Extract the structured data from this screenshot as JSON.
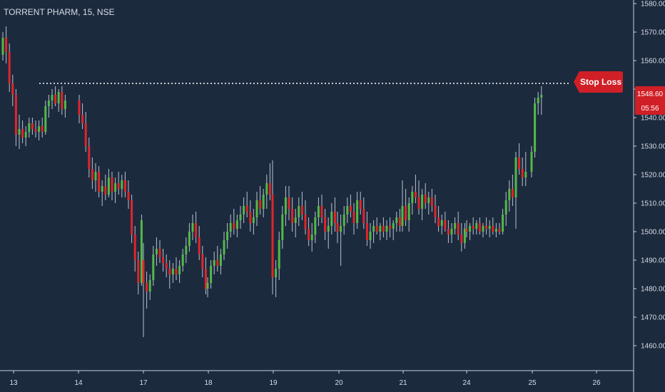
{
  "chart_title": "TORRENT PHARM, 15, NSE",
  "colors": {
    "background": "#1c2a3e",
    "up": "#53b947",
    "down": "#e0262b",
    "wick": "#b9c2cd",
    "axis_text": "#d7dde6",
    "price_tag": "#d01f26",
    "stop_loss_line": "#ffffff"
  },
  "price_tag": {
    "value": "1548.60",
    "countdown": "05:56"
  },
  "stop_loss": {
    "label": "Stop Loss",
    "value": 1552
  },
  "chart_data": {
    "type": "candlestick",
    "title": "TORRENT PHARM, 15, NSE",
    "x_tick_labels": [
      "13",
      "14",
      "17",
      "18",
      "19",
      "20",
      "21",
      "24",
      "25",
      "26"
    ],
    "y_tick_labels": [
      "1460.00",
      "1470.00",
      "1480.00",
      "1490.00",
      "1500.00",
      "1510.00",
      "1520.00",
      "1530.00",
      "1540.00",
      "1550.00",
      "1560.00",
      "1570.00",
      "1580.00"
    ],
    "ylim": [
      1452,
      1584
    ],
    "grid": false,
    "series": [
      {
        "day": "13",
        "ohlc": [
          [
            1562,
            1570,
            1560,
            1568
          ],
          [
            1568,
            1572,
            1559,
            1563
          ],
          [
            1563,
            1566,
            1549,
            1552
          ],
          [
            1552,
            1555,
            1544,
            1548
          ],
          [
            1548,
            1550,
            1530,
            1534
          ],
          [
            1534,
            1541,
            1529,
            1536
          ],
          [
            1536,
            1539,
            1531,
            1533
          ],
          [
            1533,
            1537,
            1530,
            1535
          ],
          [
            1535,
            1540,
            1533,
            1538
          ],
          [
            1538,
            1540,
            1534,
            1536
          ],
          [
            1536,
            1539,
            1533,
            1535
          ],
          [
            1535,
            1539,
            1532,
            1537
          ],
          [
            1537,
            1540,
            1533,
            1535
          ],
          [
            1535,
            1546,
            1534,
            1544
          ],
          [
            1544,
            1548,
            1540,
            1546
          ],
          [
            1546,
            1550,
            1543,
            1548
          ],
          [
            1548,
            1551,
            1544,
            1545
          ],
          [
            1545,
            1550,
            1542,
            1549
          ],
          [
            1549,
            1551,
            1541,
            1543
          ],
          [
            1543,
            1548,
            1540,
            1546
          ]
        ]
      },
      {
        "day": "14",
        "ohlc": [
          [
            1546,
            1548,
            1538,
            1541
          ],
          [
            1541,
            1545,
            1536,
            1538
          ],
          [
            1538,
            1542,
            1528,
            1530
          ],
          [
            1530,
            1533,
            1519,
            1522
          ],
          [
            1522,
            1526,
            1515,
            1518
          ],
          [
            1518,
            1524,
            1514,
            1521
          ],
          [
            1521,
            1523,
            1512,
            1514
          ],
          [
            1514,
            1518,
            1509,
            1516
          ],
          [
            1516,
            1520,
            1511,
            1513
          ],
          [
            1513,
            1522,
            1512,
            1519
          ],
          [
            1519,
            1521,
            1511,
            1514
          ],
          [
            1514,
            1519,
            1510,
            1517
          ],
          [
            1517,
            1521,
            1513,
            1515
          ],
          [
            1515,
            1520,
            1512,
            1518
          ],
          [
            1518,
            1521,
            1512,
            1514
          ],
          [
            1514,
            1518,
            1508,
            1511
          ],
          [
            1511,
            1513,
            1496,
            1499
          ],
          [
            1499,
            1502,
            1486,
            1490
          ],
          [
            1490,
            1493,
            1478,
            1482
          ],
          [
            1482,
            1506,
            1481,
            1504
          ]
        ]
      },
      {
        "day": "17",
        "ohlc": [
          [
            1490,
            1496,
            1463,
            1482
          ],
          [
            1482,
            1486,
            1473,
            1479
          ],
          [
            1479,
            1485,
            1476,
            1483
          ],
          [
            1483,
            1495,
            1481,
            1492
          ],
          [
            1492,
            1498,
            1488,
            1494
          ],
          [
            1494,
            1497,
            1489,
            1491
          ],
          [
            1491,
            1494,
            1486,
            1489
          ],
          [
            1489,
            1492,
            1484,
            1487
          ],
          [
            1487,
            1490,
            1480,
            1485
          ],
          [
            1485,
            1489,
            1482,
            1487
          ],
          [
            1487,
            1491,
            1483,
            1485
          ],
          [
            1485,
            1490,
            1482,
            1488
          ],
          [
            1488,
            1494,
            1486,
            1492
          ],
          [
            1492,
            1498,
            1489,
            1495
          ],
          [
            1495,
            1503,
            1493,
            1500
          ],
          [
            1500,
            1506,
            1497,
            1503
          ],
          [
            1503,
            1507,
            1496,
            1498
          ],
          [
            1498,
            1502,
            1490,
            1492
          ],
          [
            1492,
            1495,
            1484,
            1487
          ],
          [
            1487,
            1491,
            1478,
            1480
          ]
        ]
      },
      {
        "day": "18",
        "ohlc": [
          [
            1480,
            1484,
            1477,
            1482
          ],
          [
            1482,
            1490,
            1480,
            1488
          ],
          [
            1488,
            1493,
            1485,
            1490
          ],
          [
            1490,
            1495,
            1486,
            1488
          ],
          [
            1488,
            1494,
            1485,
            1492
          ],
          [
            1492,
            1500,
            1490,
            1497
          ],
          [
            1497,
            1503,
            1494,
            1500
          ],
          [
            1500,
            1506,
            1498,
            1503
          ],
          [
            1503,
            1508,
            1499,
            1501
          ],
          [
            1501,
            1506,
            1498,
            1504
          ],
          [
            1504,
            1509,
            1501,
            1506
          ],
          [
            1506,
            1512,
            1503,
            1509
          ],
          [
            1509,
            1514,
            1505,
            1507
          ],
          [
            1507,
            1511,
            1500,
            1503
          ],
          [
            1503,
            1508,
            1499,
            1505
          ],
          [
            1505,
            1514,
            1502,
            1511
          ],
          [
            1511,
            1516,
            1506,
            1508
          ],
          [
            1508,
            1515,
            1505,
            1513
          ],
          [
            1513,
            1520,
            1508,
            1517
          ],
          [
            1517,
            1524,
            1511,
            1513
          ]
        ]
      },
      {
        "day": "19",
        "ohlc": [
          [
            1513,
            1525,
            1478,
            1484
          ],
          [
            1484,
            1490,
            1477,
            1487
          ],
          [
            1487,
            1500,
            1483,
            1497
          ],
          [
            1497,
            1509,
            1494,
            1506
          ],
          [
            1506,
            1516,
            1502,
            1512
          ],
          [
            1512,
            1516,
            1504,
            1508
          ],
          [
            1508,
            1512,
            1500,
            1503
          ],
          [
            1503,
            1508,
            1498,
            1505
          ],
          [
            1505,
            1512,
            1502,
            1509
          ],
          [
            1509,
            1514,
            1504,
            1506
          ],
          [
            1506,
            1511,
            1499,
            1501
          ],
          [
            1501,
            1505,
            1495,
            1497
          ],
          [
            1497,
            1503,
            1493,
            1499
          ],
          [
            1499,
            1507,
            1496,
            1505
          ],
          [
            1505,
            1512,
            1502,
            1509
          ],
          [
            1509,
            1513,
            1503,
            1505
          ],
          [
            1505,
            1508,
            1497,
            1500
          ],
          [
            1500,
            1505,
            1494,
            1502
          ],
          [
            1502,
            1510,
            1499,
            1507
          ],
          [
            1507,
            1512,
            1500,
            1503
          ]
        ]
      },
      {
        "day": "20",
        "ohlc": [
          [
            1503,
            1507,
            1496,
            1500
          ],
          [
            1500,
            1506,
            1488,
            1502
          ],
          [
            1502,
            1509,
            1499,
            1506
          ],
          [
            1506,
            1512,
            1503,
            1509
          ],
          [
            1509,
            1513,
            1505,
            1507
          ],
          [
            1507,
            1510,
            1499,
            1503
          ],
          [
            1503,
            1514,
            1501,
            1511
          ],
          [
            1511,
            1514,
            1506,
            1508
          ],
          [
            1508,
            1512,
            1501,
            1503
          ],
          [
            1503,
            1507,
            1495,
            1497
          ],
          [
            1497,
            1503,
            1494,
            1500
          ],
          [
            1500,
            1504,
            1496,
            1502
          ],
          [
            1502,
            1505,
            1499,
            1500
          ],
          [
            1500,
            1503,
            1497,
            1502
          ],
          [
            1502,
            1505,
            1498,
            1500
          ],
          [
            1500,
            1504,
            1497,
            1502
          ],
          [
            1502,
            1505,
            1498,
            1501
          ],
          [
            1501,
            1504,
            1497,
            1503
          ],
          [
            1503,
            1507,
            1500,
            1505
          ],
          [
            1505,
            1508,
            1500,
            1502
          ]
        ]
      },
      {
        "day": "21",
        "ohlc": [
          [
            1502,
            1518,
            1500,
            1509
          ],
          [
            1509,
            1515,
            1502,
            1504
          ],
          [
            1504,
            1512,
            1500,
            1510
          ],
          [
            1510,
            1516,
            1506,
            1514
          ],
          [
            1514,
            1520,
            1510,
            1512
          ],
          [
            1512,
            1518,
            1506,
            1508
          ],
          [
            1508,
            1515,
            1504,
            1513
          ],
          [
            1513,
            1517,
            1508,
            1510
          ],
          [
            1510,
            1514,
            1506,
            1512
          ],
          [
            1512,
            1515,
            1507,
            1509
          ],
          [
            1509,
            1513,
            1503,
            1505
          ],
          [
            1505,
            1509,
            1500,
            1502
          ],
          [
            1502,
            1506,
            1499,
            1504
          ],
          [
            1504,
            1507,
            1500,
            1501
          ],
          [
            1501,
            1504,
            1496,
            1499
          ],
          [
            1499,
            1503,
            1496,
            1501
          ],
          [
            1501,
            1505,
            1499,
            1503
          ],
          [
            1503,
            1507,
            1497,
            1499
          ],
          [
            1499,
            1503,
            1493,
            1496
          ],
          [
            1496,
            1503,
            1494,
            1501
          ]
        ]
      },
      {
        "day": "24",
        "ohlc": [
          [
            1501,
            1504,
            1498,
            1500
          ],
          [
            1500,
            1503,
            1497,
            1502
          ],
          [
            1502,
            1505,
            1499,
            1501
          ],
          [
            1501,
            1504,
            1499,
            1503
          ],
          [
            1503,
            1505,
            1499,
            1500
          ],
          [
            1500,
            1503,
            1498,
            1502
          ],
          [
            1502,
            1505,
            1499,
            1501
          ],
          [
            1501,
            1504,
            1498,
            1502
          ],
          [
            1502,
            1505,
            1499,
            1500
          ],
          [
            1500,
            1503,
            1498,
            1501
          ],
          [
            1501,
            1503,
            1499,
            1500
          ],
          [
            1500,
            1508,
            1499,
            1506
          ],
          [
            1506,
            1514,
            1502,
            1511
          ],
          [
            1511,
            1518,
            1507,
            1515
          ],
          [
            1515,
            1520,
            1509,
            1512
          ],
          [
            1512,
            1528,
            1501,
            1526
          ],
          [
            1526,
            1531,
            1520,
            1522
          ],
          [
            1522,
            1526,
            1516,
            1519
          ],
          [
            1519,
            1528,
            1516,
            1521
          ]
        ]
      },
      {
        "day": "25",
        "ohlc": [
          [
            1521,
            1530,
            1519,
            1528
          ],
          [
            1528,
            1547,
            1526,
            1545
          ],
          [
            1545,
            1549,
            1541,
            1547
          ],
          [
            1547,
            1551,
            1541,
            1548
          ]
        ]
      }
    ]
  }
}
